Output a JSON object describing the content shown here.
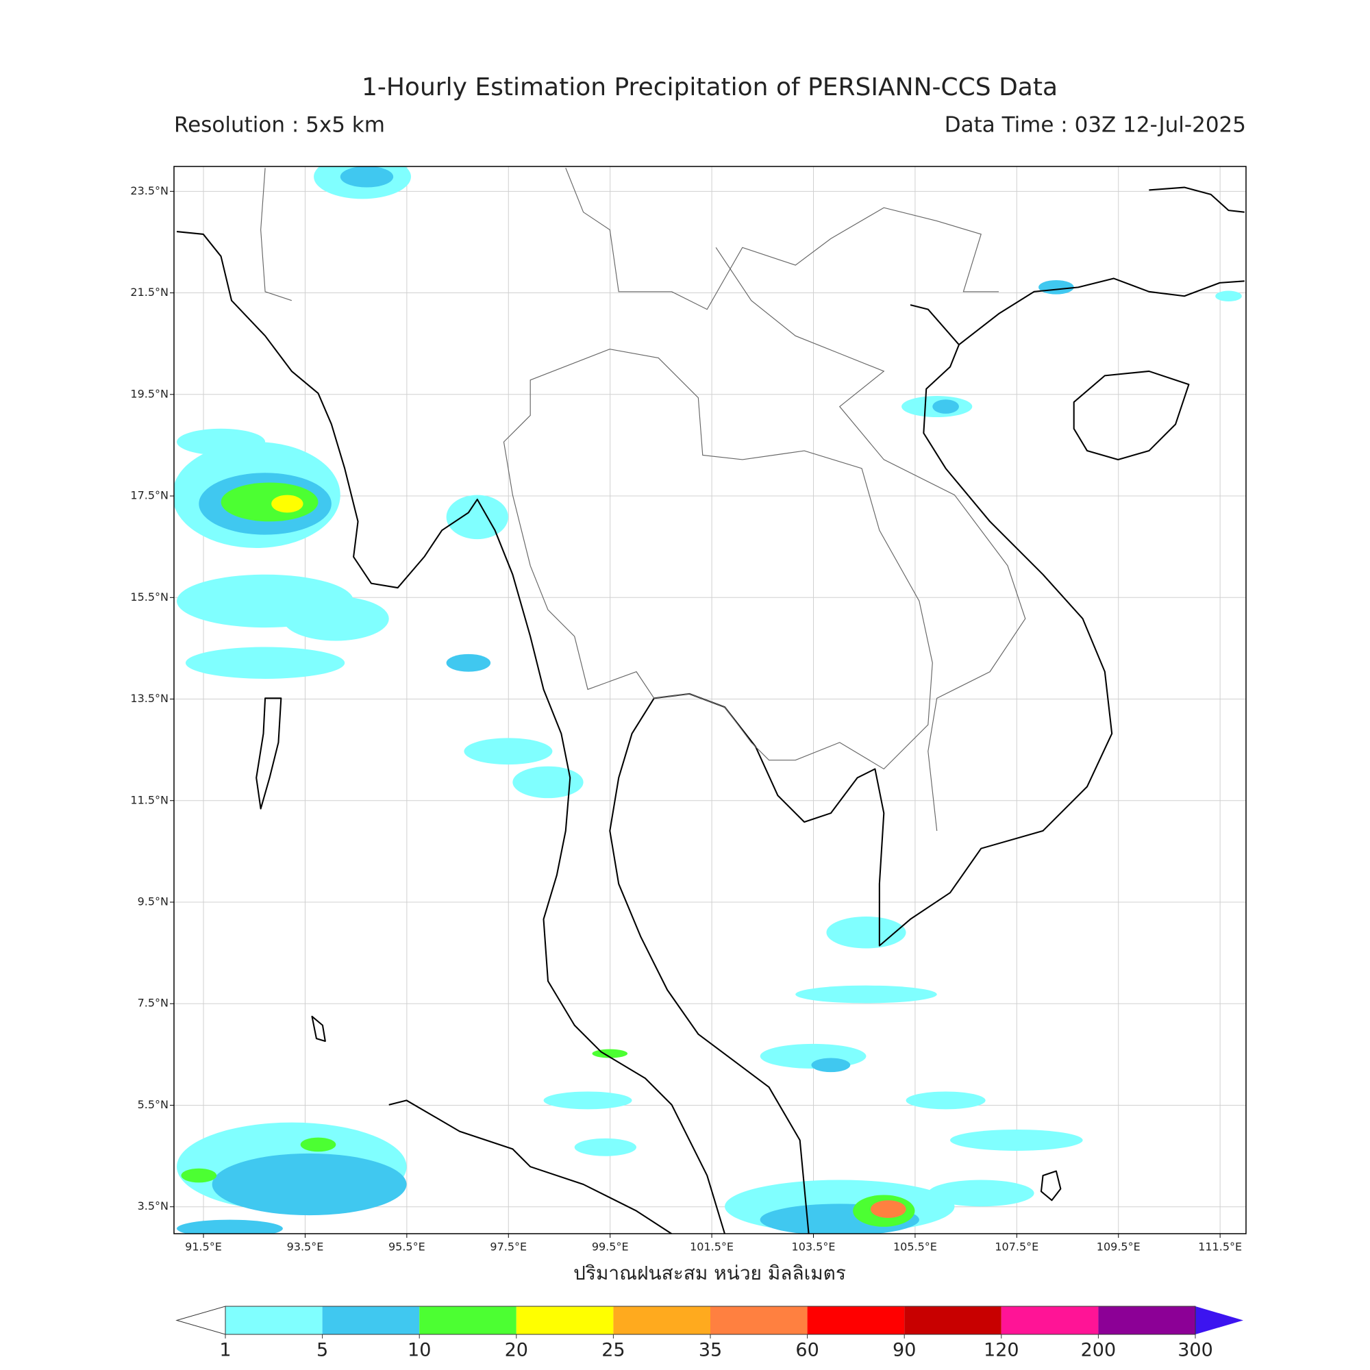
{
  "map": {
    "title": "1-Hourly Estimation Precipitation of PERSIANN-CCS Data",
    "resolution": "Resolution : 5x5 km",
    "data_time": "Data Time : 03Z 12-Jul-2025",
    "xlim": [
      90.92,
      112.01
    ],
    "ylim": [
      2.97,
      23.99
    ],
    "lon_ticks": [
      {
        "value": 91.5,
        "label": "91.5°E"
      },
      {
        "value": 93.5,
        "label": "93.5°E"
      },
      {
        "value": 95.5,
        "label": "95.5°E"
      },
      {
        "value": 97.5,
        "label": "97.5°E"
      },
      {
        "value": 99.5,
        "label": "99.5°E"
      },
      {
        "value": 101.5,
        "label": "101.5°E"
      },
      {
        "value": 103.5,
        "label": "103.5°E"
      },
      {
        "value": 105.5,
        "label": "105.5°E"
      },
      {
        "value": 107.5,
        "label": "107.5°E"
      },
      {
        "value": 109.5,
        "label": "109.5°E"
      },
      {
        "value": 111.5,
        "label": "111.5°E"
      }
    ],
    "lat_ticks": [
      {
        "value": 23.5,
        "label": "23.5°N"
      },
      {
        "value": 21.5,
        "label": "21.5°N"
      },
      {
        "value": 19.5,
        "label": "19.5°N"
      },
      {
        "value": 17.5,
        "label": "17.5°N"
      },
      {
        "value": 15.5,
        "label": "15.5°N"
      },
      {
        "value": 13.5,
        "label": "13.5°N"
      },
      {
        "value": 11.5,
        "label": "11.5°N"
      },
      {
        "value": 9.5,
        "label": "9.5°N"
      },
      {
        "value": 7.5,
        "label": "7.5°N"
      },
      {
        "value": 5.5,
        "label": "5.5°N"
      },
      {
        "value": 3.5,
        "label": "3.5°N"
      }
    ],
    "colorbar_label": "ปริมาณฝนสะสม หน่วย มิลลิเมตร",
    "colorbar": {
      "ticks": [
        1,
        5,
        10,
        20,
        25,
        35,
        60,
        90,
        120,
        200,
        300
      ],
      "colors": [
        "#80ffff",
        "#40c8f0",
        "#4cff32",
        "#ffff00",
        "#ffaa1e",
        "#ff8040",
        "#ff0000",
        "#c80000",
        "#ff1496",
        "#8c0096"
      ],
      "under_color": "#ffffff",
      "over_color": "#3c14f0"
    }
  }
}
